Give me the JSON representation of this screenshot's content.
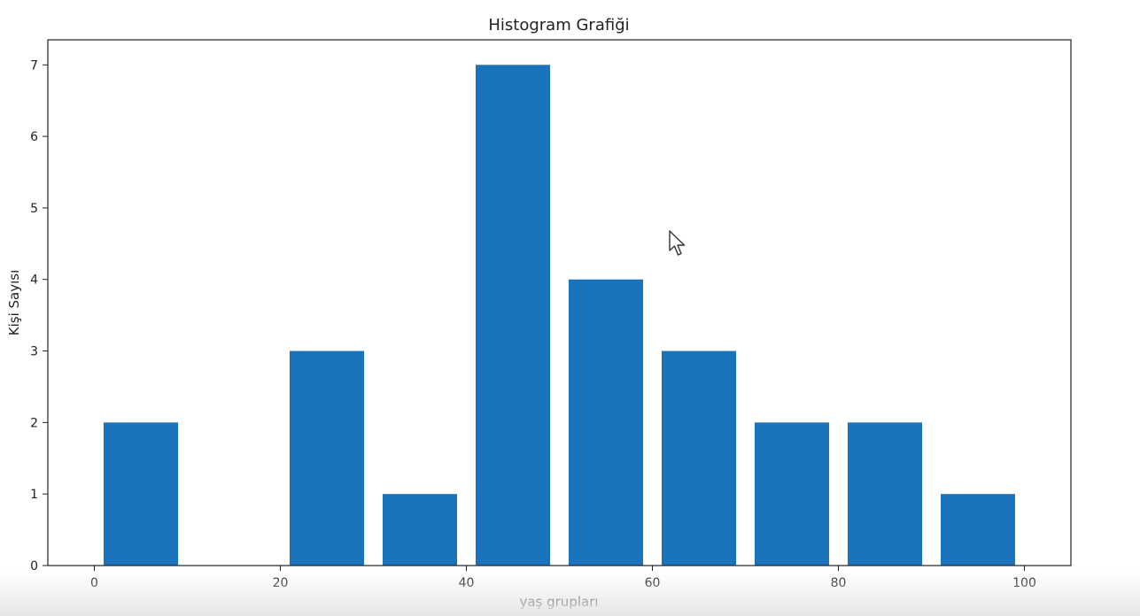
{
  "chart_data": {
    "type": "bar",
    "title": "Histogram Grafiği",
    "xlabel": "yaş grupları",
    "ylabel": "Kişi Sayısı",
    "x": [
      5,
      25,
      35,
      45,
      55,
      65,
      75,
      85,
      95
    ],
    "values": [
      2,
      3,
      1,
      7,
      4,
      3,
      2,
      2,
      1
    ],
    "bar_width": 8,
    "xlim": [
      -5,
      105
    ],
    "ylim": [
      0,
      7.35
    ],
    "xticks": [
      0,
      20,
      40,
      60,
      80,
      100
    ],
    "yticks": [
      0,
      1,
      2,
      3,
      4,
      5,
      6,
      7
    ],
    "grid": false,
    "color": "#1b73bc"
  },
  "cursor_icon": "mouse-pointer-icon"
}
